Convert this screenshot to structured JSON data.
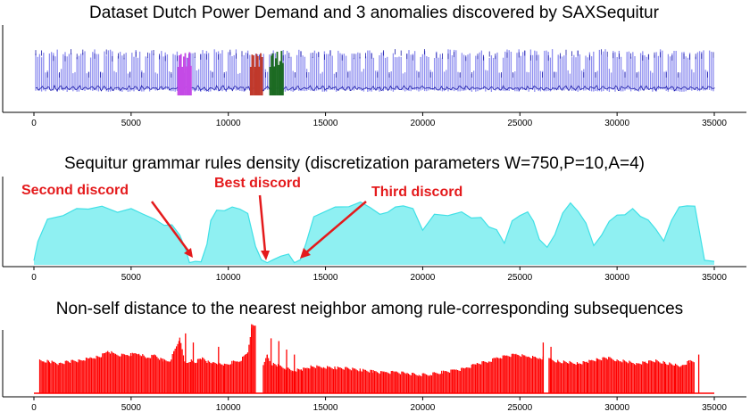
{
  "chart_data": [
    {
      "type": "line",
      "title": "Dataset Dutch Power Demand and 3 anomalies discovered by SAXSequitur",
      "xlim": [
        0,
        35000
      ],
      "x_ticks": [
        0,
        5000,
        10000,
        15000,
        20000,
        25000,
        30000,
        35000
      ],
      "series": [
        {
          "role": "signal",
          "x_range": [
            0,
            35040
          ],
          "color": "#1a1aa8",
          "fill_color": "#8f8fef"
        }
      ],
      "highlights": [
        {
          "role": "best",
          "x_range": [
            11150,
            11800
          ],
          "color": "#c0392b"
        },
        {
          "role": "second",
          "x_range": [
            7420,
            8100
          ],
          "color": "#c44ae6"
        },
        {
          "role": "third",
          "x_range": [
            12150,
            12850
          ],
          "color": "#1c6b22"
        }
      ]
    },
    {
      "type": "area",
      "title": "Sequitur grammar rules density (discretization parameters W=750,P=10,A=4)",
      "xlim": [
        0,
        35000
      ],
      "ylim": [
        0,
        1
      ],
      "x_ticks": [
        0,
        5000,
        10000,
        15000,
        20000,
        25000,
        30000,
        35000
      ],
      "color": "#40e0e6",
      "x": [
        0,
        200,
        700,
        1500,
        2200,
        2800,
        3500,
        4300,
        5000,
        5600,
        6200,
        6700,
        7100,
        7500,
        7800,
        8000,
        8300,
        8600,
        8900,
        9100,
        9400,
        9800,
        10200,
        10600,
        11000,
        11400,
        11700,
        12000,
        12300,
        12700,
        13100,
        13400,
        13700,
        14000,
        14400,
        14900,
        15500,
        16200,
        16800,
        17300,
        17800,
        18200,
        18600,
        19000,
        19500,
        20000,
        20600,
        21300,
        22000,
        22500,
        23000,
        23400,
        23800,
        24200,
        24600,
        25000,
        25400,
        25700,
        26000,
        26400,
        26800,
        27200,
        27600,
        28000,
        28400,
        28800,
        29200,
        29600,
        30000,
        30400,
        30800,
        31200,
        31600,
        32000,
        32400,
        32800,
        33200,
        33600,
        34000,
        34500,
        35000
      ],
      "y": [
        0.04,
        0.3,
        0.55,
        0.62,
        0.68,
        0.7,
        0.71,
        0.66,
        0.68,
        0.64,
        0.55,
        0.5,
        0.48,
        0.38,
        0.18,
        0.04,
        0.03,
        0.05,
        0.24,
        0.56,
        0.66,
        0.68,
        0.7,
        0.7,
        0.62,
        0.24,
        0.05,
        0.04,
        0.05,
        0.12,
        0.12,
        0.04,
        0.05,
        0.28,
        0.58,
        0.66,
        0.7,
        0.73,
        0.76,
        0.72,
        0.61,
        0.66,
        0.7,
        0.74,
        0.68,
        0.44,
        0.61,
        0.62,
        0.64,
        0.59,
        0.57,
        0.48,
        0.42,
        0.28,
        0.53,
        0.62,
        0.64,
        0.55,
        0.3,
        0.23,
        0.36,
        0.65,
        0.75,
        0.67,
        0.5,
        0.25,
        0.35,
        0.55,
        0.6,
        0.63,
        0.68,
        0.61,
        0.54,
        0.45,
        0.28,
        0.56,
        0.7,
        0.74,
        0.71,
        0.07,
        0.03
      ]
    },
    {
      "type": "bar",
      "title": "Non-self distance to the nearest neighbor among rule-corresponding subsequences",
      "xlim": [
        0,
        35000
      ],
      "x_ticks": [
        0,
        5000,
        10000,
        15000,
        20000,
        25000,
        30000,
        35000
      ],
      "color": "#ff0000",
      "x": [
        0,
        300,
        500,
        800,
        1300,
        1800,
        2300,
        2900,
        3400,
        3800,
        4200,
        4600,
        5000,
        5400,
        5800,
        6200,
        6600,
        7000,
        7200,
        7500,
        7800,
        8100,
        8300,
        8600,
        8900,
        9200,
        9500,
        9800,
        10200,
        10600,
        11000,
        11200,
        11400,
        11800,
        12000,
        12200,
        12500,
        12900,
        13300,
        13800,
        14300,
        14900,
        15500,
        16200,
        16800,
        17400,
        18000,
        18600,
        19200,
        19800,
        20400,
        21000,
        21600,
        22200,
        22800,
        23400,
        23800,
        24200,
        24800,
        25400,
        26000,
        26200,
        26500,
        27000,
        27500,
        28000,
        28500,
        29000,
        29500,
        30000,
        30500,
        31000,
        31500,
        32000,
        32500,
        33000,
        33300,
        33700,
        34000,
        34500,
        35000
      ],
      "y": [
        0.0,
        0.47,
        0.46,
        0.45,
        0.42,
        0.45,
        0.46,
        0.5,
        0.52,
        0.6,
        0.55,
        0.54,
        0.55,
        0.57,
        0.5,
        0.54,
        0.47,
        0.46,
        0.58,
        0.78,
        0.42,
        0.47,
        0.44,
        0.5,
        0.45,
        0.42,
        0.42,
        0.4,
        0.44,
        0.46,
        0.58,
        0.95,
        0.0,
        0.38,
        0.55,
        0.42,
        0.4,
        0.36,
        0.32,
        0.34,
        0.38,
        0.37,
        0.36,
        0.35,
        0.33,
        0.31,
        0.29,
        0.3,
        0.28,
        0.26,
        0.27,
        0.3,
        0.32,
        0.35,
        0.42,
        0.45,
        0.5,
        0.52,
        0.55,
        0.52,
        0.5,
        0.0,
        0.48,
        0.45,
        0.44,
        0.42,
        0.45,
        0.48,
        0.5,
        0.47,
        0.45,
        0.42,
        0.44,
        0.46,
        0.43,
        0.4,
        0.38,
        0.45,
        0.0,
        0.0,
        0.0
      ],
      "spikes": [
        {
          "x": 7800,
          "y": 0.85
        },
        {
          "x": 8200,
          "y": 0.72
        },
        {
          "x": 9500,
          "y": 0.66
        },
        {
          "x": 11200,
          "y": 0.98
        },
        {
          "x": 12200,
          "y": 0.78
        },
        {
          "x": 12600,
          "y": 0.74
        },
        {
          "x": 13000,
          "y": 0.62
        },
        {
          "x": 13400,
          "y": 0.55
        },
        {
          "x": 26200,
          "y": 0.72
        },
        {
          "x": 26600,
          "y": 0.66
        },
        {
          "x": 34200,
          "y": 0.55
        }
      ]
    }
  ],
  "annotations": [
    {
      "text": "Second discord",
      "target_x": 7800
    },
    {
      "text": "Best discord",
      "target_x": 11600
    },
    {
      "text": "Third discord",
      "target_x": 13200
    }
  ],
  "tick_labels": [
    "0",
    "5000",
    "10000",
    "15000",
    "20000",
    "25000",
    "30000",
    "35000"
  ]
}
